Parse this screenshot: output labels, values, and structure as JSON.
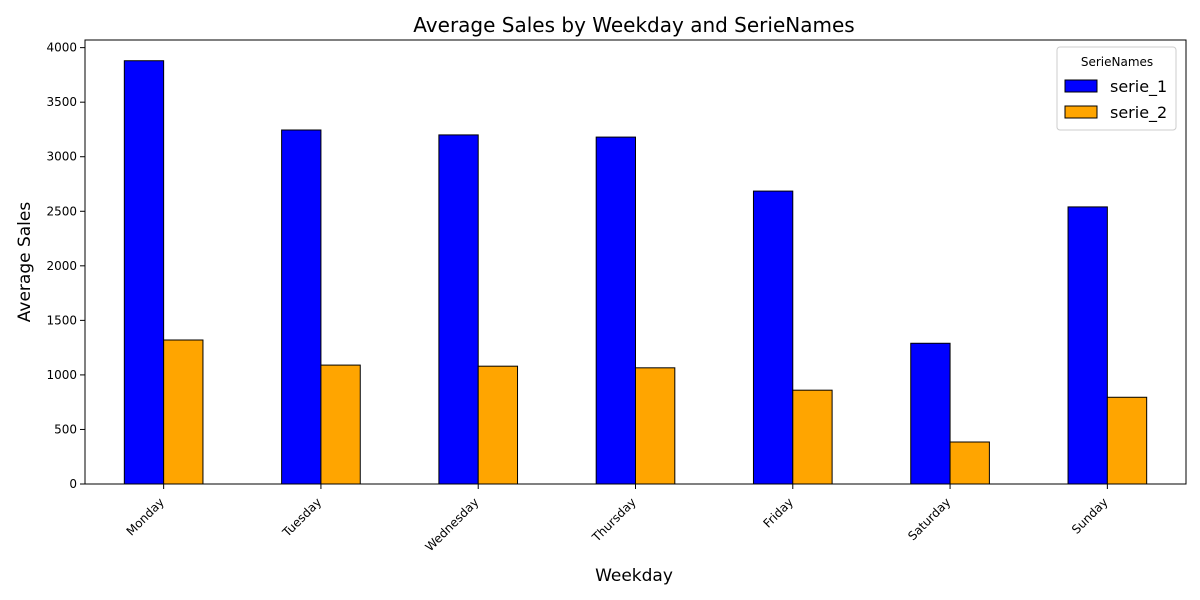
{
  "chart_data": {
    "type": "bar",
    "title": "Average Sales by Weekday and SerieNames",
    "xlabel": "Weekday",
    "ylabel": "Average Sales",
    "ylim": [
      0,
      4070
    ],
    "yticks": [
      0,
      500,
      1000,
      1500,
      2000,
      2500,
      3000,
      3500,
      4000
    ],
    "categories": [
      "Monday",
      "Tuesday",
      "Wednesday",
      "Thursday",
      "Friday",
      "Saturday",
      "Sunday"
    ],
    "series": [
      {
        "name": "serie_1",
        "color": "#0000ff",
        "values": [
          3880,
          3245,
          3200,
          3180,
          2685,
          1290,
          2540
        ]
      },
      {
        "name": "serie_2",
        "color": "#ffa500",
        "values": [
          1320,
          1090,
          1080,
          1065,
          860,
          385,
          795
        ]
      }
    ],
    "legend": {
      "title": "SerieNames",
      "position": "top-right"
    },
    "grid": false,
    "bar_edge_color": "#000000",
    "tick_label_rotation": 45
  }
}
